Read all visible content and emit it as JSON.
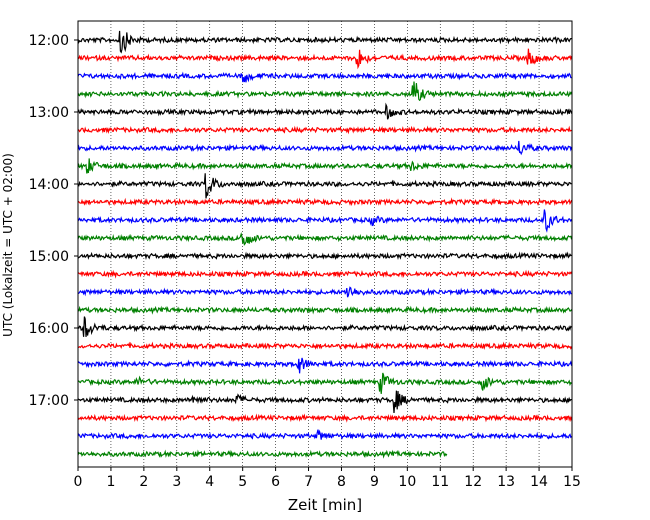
{
  "chart_data": {
    "type": "line",
    "description_source": "helicorder / seismogram drum plot",
    "xlabel": "Zeit  [min]",
    "ylabel": "UTC (Lokalzeit = UTC + 02:00)",
    "xlim": [
      0,
      15
    ],
    "x_ticks": [
      0,
      1,
      2,
      3,
      4,
      5,
      6,
      7,
      8,
      9,
      10,
      11,
      12,
      13,
      14,
      15
    ],
    "x_tick_labels": [
      "0",
      "1",
      "2",
      "3",
      "4",
      "5",
      "6",
      "7",
      "8",
      "9",
      "10",
      "11",
      "12",
      "13",
      "14",
      "15"
    ],
    "x_grid": "dotted vertical at each minute",
    "y_tick_labels": [
      "12:00",
      "13:00",
      "14:00",
      "15:00",
      "16:00",
      "17:00"
    ],
    "y_ticks_hours": [
      12.0,
      13.0,
      14.0,
      15.0,
      16.0,
      17.0
    ],
    "trace_interval_min": 15,
    "color_cycle": [
      "#000000",
      "#ff0000",
      "#0000ff",
      "#008000"
    ],
    "traces": [
      {
        "start": "12:00",
        "end_min": 15,
        "color": "#000000",
        "events": [
          {
            "t": 1.3,
            "amp": 3.2
          }
        ]
      },
      {
        "start": "12:15",
        "end_min": 15,
        "color": "#ff0000",
        "events": [
          {
            "t": 8.5,
            "amp": 2.0
          },
          {
            "t": 13.7,
            "amp": 1.8
          }
        ]
      },
      {
        "start": "12:30",
        "end_min": 15,
        "color": "#0000ff",
        "events": [
          {
            "t": 5.0,
            "amp": 1.5
          }
        ]
      },
      {
        "start": "12:45",
        "end_min": 15,
        "color": "#008000",
        "events": [
          {
            "t": 10.2,
            "amp": 2.6
          }
        ]
      },
      {
        "start": "13:00",
        "end_min": 15,
        "color": "#000000",
        "events": [
          {
            "t": 9.4,
            "amp": 1.2
          }
        ]
      },
      {
        "start": "13:15",
        "end_min": 15,
        "color": "#ff0000",
        "events": []
      },
      {
        "start": "13:30",
        "end_min": 15,
        "color": "#0000ff",
        "events": [
          {
            "t": 13.4,
            "amp": 1.5
          }
        ]
      },
      {
        "start": "13:45",
        "end_min": 15,
        "color": "#008000",
        "events": [
          {
            "t": 0.3,
            "amp": 1.5
          },
          {
            "t": 10.1,
            "amp": 0.9
          }
        ]
      },
      {
        "start": "14:00",
        "end_min": 15,
        "color": "#000000",
        "events": [
          {
            "t": 3.9,
            "amp": 3.0
          }
        ]
      },
      {
        "start": "14:15",
        "end_min": 15,
        "color": "#ff0000",
        "events": []
      },
      {
        "start": "14:30",
        "end_min": 15,
        "color": "#0000ff",
        "events": [
          {
            "t": 8.9,
            "amp": 0.8
          },
          {
            "t": 14.2,
            "amp": 2.2
          }
        ]
      },
      {
        "start": "14:45",
        "end_min": 15,
        "color": "#008000",
        "events": [
          {
            "t": 5.0,
            "amp": 2.4
          }
        ]
      },
      {
        "start": "15:00",
        "end_min": 15,
        "color": "#000000",
        "events": []
      },
      {
        "start": "15:15",
        "end_min": 15,
        "color": "#ff0000",
        "events": []
      },
      {
        "start": "15:30",
        "end_min": 15,
        "color": "#0000ff",
        "events": [
          {
            "t": 8.2,
            "amp": 1.5
          }
        ]
      },
      {
        "start": "15:45",
        "end_min": 15,
        "color": "#008000",
        "events": []
      },
      {
        "start": "16:00",
        "end_min": 15,
        "color": "#000000",
        "events": [
          {
            "t": 0.2,
            "amp": 2.4
          }
        ]
      },
      {
        "start": "16:15",
        "end_min": 15,
        "color": "#ff0000",
        "events": []
      },
      {
        "start": "16:30",
        "end_min": 15,
        "color": "#0000ff",
        "events": [
          {
            "t": 6.7,
            "amp": 1.8
          }
        ]
      },
      {
        "start": "16:45",
        "end_min": 15,
        "color": "#008000",
        "events": [
          {
            "t": 9.2,
            "amp": 2.2
          },
          {
            "t": 12.3,
            "amp": 1.5
          },
          {
            "t": 1.8,
            "amp": 0.8
          }
        ]
      },
      {
        "start": "17:00",
        "end_min": 15,
        "color": "#000000",
        "events": [
          {
            "t": 9.6,
            "amp": 2.6
          },
          {
            "t": 4.8,
            "amp": 1.0
          },
          {
            "t": 3.5,
            "amp": 0.9
          }
        ]
      },
      {
        "start": "17:15",
        "end_min": 15,
        "color": "#ff0000",
        "events": []
      },
      {
        "start": "17:30",
        "end_min": 15,
        "color": "#0000ff",
        "events": [
          {
            "t": 7.3,
            "amp": 0.9
          }
        ]
      },
      {
        "start": "17:45",
        "end_min": 11.2,
        "color": "#008000",
        "events": []
      }
    ]
  }
}
